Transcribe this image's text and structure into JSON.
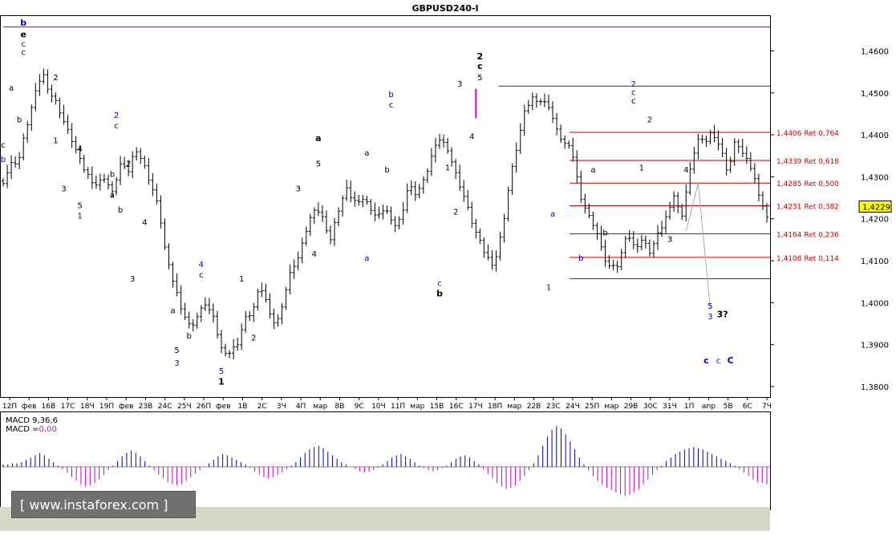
{
  "chart_data": {
    "type": "candlestick",
    "title": "GBPUSD240-I",
    "current_price_label": "1,4229",
    "colors": {
      "bars": "#000000",
      "levels": "#cc0000",
      "macd_pos": "#0000cc",
      "macd_neg": "#cc00cc",
      "projection": "#aaaaaa",
      "wave_blue": "#0000cc"
    },
    "price_axis": {
      "min": 1.3775,
      "max": 1.4685,
      "ticks": [
        "1,4600",
        "1,4500",
        "1,4400",
        "1,4300",
        "1,4200",
        "1,4100",
        "1,4000",
        "1,3900",
        "1,3800"
      ]
    },
    "x_labels": [
      "12П",
      "фев",
      "16В",
      "17С",
      "18Ч",
      "19П",
      "фев",
      "23В",
      "24С",
      "25Ч",
      "26П",
      "фев",
      "1В",
      "2С",
      "3Ч",
      "4П",
      "мар",
      "8В",
      "9С",
      "10Ч",
      "11П",
      "мар",
      "15В",
      "16С",
      "17Ч",
      "18П",
      "мар",
      "22В",
      "23С",
      "24Ч",
      "25П",
      "мар",
      "29В",
      "30С",
      "31Ч",
      "1П",
      "апр",
      "5В",
      "6С",
      "7Ч"
    ],
    "close_series": [
      1.429,
      1.433,
      1.434,
      1.442,
      1.449,
      1.455,
      1.45,
      1.447,
      1.442,
      1.438,
      1.433,
      1.43,
      1.428,
      1.43,
      1.426,
      1.433,
      1.431,
      1.437,
      1.433,
      1.428,
      1.422,
      1.41,
      1.404,
      1.398,
      1.394,
      1.397,
      1.4,
      1.396,
      1.389,
      1.388,
      1.39,
      1.396,
      1.398,
      1.404,
      1.399,
      1.394,
      1.401,
      1.408,
      1.411,
      1.418,
      1.423,
      1.42,
      1.415,
      1.422,
      1.427,
      1.424,
      1.425,
      1.423,
      1.42,
      1.423,
      1.418,
      1.42,
      1.428,
      1.426,
      1.429,
      1.435,
      1.439,
      1.437,
      1.431,
      1.426,
      1.42,
      1.415,
      1.411,
      1.409,
      1.417,
      1.429,
      1.438,
      1.446,
      1.449,
      1.448,
      1.447,
      1.441,
      1.438,
      1.436,
      1.426,
      1.421,
      1.418,
      1.411,
      1.408,
      1.409,
      1.417,
      1.413,
      1.415,
      1.412,
      1.416,
      1.42,
      1.426,
      1.42,
      1.43,
      1.439,
      1.438,
      1.441,
      1.437,
      1.431,
      1.439,
      1.435,
      1.432,
      1.426,
      1.42
    ],
    "levels": [
      {
        "price": 1.4657,
        "label": ""
      },
      {
        "price": 1.4516,
        "label": ""
      },
      {
        "price": 1.4406,
        "label": "1,4406 Ret 0,764"
      },
      {
        "price": 1.4339,
        "label": "1,4339 Ret 0,618"
      },
      {
        "price": 1.4285,
        "label": "1,4285 Ret 0,500"
      },
      {
        "price": 1.4231,
        "label": "1,4231 Ret 0,382"
      },
      {
        "price": 1.4164,
        "label": "1,4164 Ret 0,236"
      },
      {
        "price": 1.4108,
        "label": "1,4108 Ret 0,114"
      },
      {
        "price": 1.4057,
        "label": ""
      }
    ],
    "wave_labels": [
      {
        "t": "b",
        "i": 5,
        "p": 1.466,
        "c": "#0000cc",
        "bold": true
      },
      {
        "t": "e",
        "i": 5,
        "p": 1.4632,
        "c": "#000000",
        "bold": true
      },
      {
        "t": "c",
        "i": 5,
        "p": 1.461,
        "c": "#0000cc"
      },
      {
        "t": "c",
        "i": 5,
        "p": 1.459,
        "c": "#000000"
      },
      {
        "t": "a",
        "i": 2,
        "p": 1.4505,
        "c": "#000000"
      },
      {
        "t": "b",
        "i": 4,
        "p": 1.443,
        "c": "#000000"
      },
      {
        "t": "2",
        "i": 13,
        "p": 1.453,
        "c": "#000000"
      },
      {
        "t": "1",
        "i": 13,
        "p": 1.438,
        "c": "#000000"
      },
      {
        "t": "c",
        "i": 0,
        "p": 1.437,
        "c": "#000000"
      },
      {
        "t": "b",
        "i": 0,
        "p": 1.4335,
        "c": "#0000cc"
      },
      {
        "t": "3",
        "i": 15,
        "p": 1.4265,
        "c": "#000000"
      },
      {
        "t": "4",
        "i": 19,
        "p": 1.436,
        "c": "#000000"
      },
      {
        "t": "5",
        "i": 19,
        "p": 1.4225,
        "c": "#000000"
      },
      {
        "t": "1",
        "i": 19,
        "p": 1.42,
        "c": "#0000cc"
      },
      {
        "t": "2",
        "i": 28,
        "p": 1.444,
        "c": "#0000cc"
      },
      {
        "t": "c",
        "i": 28,
        "p": 1.4415,
        "c": "#000000"
      },
      {
        "t": "a",
        "i": 27,
        "p": 1.425,
        "c": "#000000"
      },
      {
        "t": "b",
        "i": 27,
        "p": 1.43,
        "c": "#000000"
      },
      {
        "t": "2",
        "i": 31,
        "p": 1.4325,
        "c": "#000000"
      },
      {
        "t": "b",
        "i": 29,
        "p": 1.4215,
        "c": "#000000"
      },
      {
        "t": "4",
        "i": 35,
        "p": 1.4185,
        "c": "#000000"
      },
      {
        "t": "3",
        "i": 32,
        "p": 1.405,
        "c": "#000000"
      },
      {
        "t": "a",
        "i": 42,
        "p": 1.3975,
        "c": "#000000"
      },
      {
        "t": "b",
        "i": 46,
        "p": 1.3915,
        "c": "#000000"
      },
      {
        "t": "5",
        "i": 43,
        "p": 1.388,
        "c": "#000000"
      },
      {
        "t": "3",
        "i": 43,
        "p": 1.385,
        "c": "#0000cc"
      },
      {
        "t": "4",
        "i": 49,
        "p": 1.4085,
        "c": "#0000cc"
      },
      {
        "t": "c",
        "i": 49,
        "p": 1.406,
        "c": "#000000"
      },
      {
        "t": "1",
        "i": 59,
        "p": 1.405,
        "c": "#000000"
      },
      {
        "t": "2",
        "i": 62,
        "p": 1.391,
        "c": "#000000"
      },
      {
        "t": "5",
        "i": 54,
        "p": 1.383,
        "c": "#0000cc"
      },
      {
        "t": "1",
        "i": 54,
        "p": 1.3805,
        "c": "#000000",
        "bold": true
      },
      {
        "t": "3",
        "i": 73,
        "p": 1.4265,
        "c": "#000000"
      },
      {
        "t": "4",
        "i": 77,
        "p": 1.411,
        "c": "#000000"
      },
      {
        "t": "a",
        "i": 78,
        "p": 1.4385,
        "c": "#000000",
        "bold": true
      },
      {
        "t": "5",
        "i": 78,
        "p": 1.4325,
        "c": "#000000"
      },
      {
        "t": "a",
        "i": 90,
        "p": 1.435,
        "c": "#000000"
      },
      {
        "t": "a",
        "i": 90,
        "p": 1.41,
        "c": "#0000cc"
      },
      {
        "t": "b",
        "i": 96,
        "p": 1.449,
        "c": "#0000cc"
      },
      {
        "t": "c",
        "i": 96,
        "p": 1.4465,
        "c": "#000000"
      },
      {
        "t": "b",
        "i": 95,
        "p": 1.431,
        "c": "#000000"
      },
      {
        "t": "c",
        "i": 108,
        "p": 1.404,
        "c": "#0000cc"
      },
      {
        "t": "b",
        "i": 108,
        "p": 1.4015,
        "c": "#000000",
        "bold": true
      },
      {
        "t": "1",
        "i": 110,
        "p": 1.4315,
        "c": "#000000"
      },
      {
        "t": "2",
        "i": 112,
        "p": 1.421,
        "c": "#000000"
      },
      {
        "t": "3",
        "i": 113,
        "p": 1.4515,
        "c": "#000000"
      },
      {
        "t": "4",
        "i": 116,
        "p": 1.439,
        "c": "#000000"
      },
      {
        "t": "2",
        "i": 118,
        "p": 1.458,
        "c": "#000000",
        "bold": true
      },
      {
        "t": "c",
        "i": 118,
        "p": 1.4557,
        "c": "#000000",
        "bold": true
      },
      {
        "t": "5",
        "i": 118,
        "p": 1.453,
        "c": "#000000"
      },
      {
        "t": "1",
        "i": 135,
        "p": 1.403,
        "c": "#0000cc"
      },
      {
        "t": "a",
        "i": 136,
        "p": 1.4205,
        "c": "#0000cc"
      },
      {
        "t": "b",
        "i": 143,
        "p": 1.41,
        "c": "#0000cc"
      },
      {
        "t": "a",
        "i": 146,
        "p": 1.431,
        "c": "#000000"
      },
      {
        "t": "b",
        "i": 149,
        "p": 1.416,
        "c": "#000000"
      },
      {
        "t": "2",
        "i": 156,
        "p": 1.4515,
        "c": "#0000cc"
      },
      {
        "t": "c",
        "i": 156,
        "p": 1.4495,
        "c": "#0000cc"
      },
      {
        "t": "c",
        "i": 156,
        "p": 1.4475,
        "c": "#000000"
      },
      {
        "t": "2",
        "i": 160,
        "p": 1.443,
        "c": "#000000"
      },
      {
        "t": "1",
        "i": 158,
        "p": 1.4315,
        "c": "#000000"
      },
      {
        "t": "3",
        "i": 165,
        "p": 1.4145,
        "c": "#000000"
      },
      {
        "t": "4",
        "i": 169,
        "p": 1.431,
        "c": "#000000"
      },
      {
        "t": "5",
        "i": 175,
        "p": 1.3985,
        "c": "#0000cc"
      },
      {
        "t": "3",
        "i": 175,
        "p": 1.396,
        "c": "#0000cc"
      },
      {
        "t": "3?",
        "i": 178,
        "p": 1.3965,
        "c": "#000000",
        "bold": true
      },
      {
        "t": "c",
        "i": 174,
        "p": 1.3855,
        "c": "#0000cc",
        "bold": true
      },
      {
        "t": "c",
        "i": 177,
        "p": 1.3855,
        "c": "#0000cc"
      },
      {
        "t": "C",
        "i": 180,
        "p": 1.3855,
        "c": "#0000cc",
        "bold": true
      }
    ],
    "macd_label": "MACD 9,36,6",
    "macd_value_label": "MACD =",
    "macd_value": "0,00",
    "macd_series": [
      2,
      2,
      3,
      3,
      4,
      6,
      8,
      10,
      12,
      10,
      7,
      4,
      1,
      -2,
      -5,
      -9,
      -12,
      -15,
      -17,
      -16,
      -14,
      -11,
      -7,
      -3,
      1,
      5,
      9,
      12,
      14,
      12,
      9,
      5,
      1,
      -3,
      -7,
      -10,
      -13,
      -15,
      -16,
      -15,
      -12,
      -9,
      -6,
      -3,
      0,
      3,
      6,
      9,
      11,
      10,
      8,
      6,
      4,
      2,
      -1,
      -4,
      -7,
      -9,
      -10,
      -9,
      -7,
      -5,
      -2,
      1,
      4,
      8,
      12,
      15,
      17,
      18,
      16,
      13,
      10,
      7,
      4,
      2,
      0,
      -2,
      -4,
      -5,
      -4,
      -3,
      -1,
      2,
      5,
      8,
      10,
      11,
      9,
      7,
      4,
      1,
      -1,
      -3,
      -4,
      -3,
      -1,
      1,
      4,
      7,
      9,
      10,
      8,
      5,
      2,
      -2,
      -6,
      -10,
      -14,
      -17,
      -19,
      -18,
      -16,
      -12,
      -8,
      -3,
      3,
      10,
      18,
      26,
      32,
      35,
      33,
      28,
      22,
      15,
      8,
      2,
      -3,
      -8,
      -12,
      -15,
      -18,
      -20,
      -22,
      -24,
      -25,
      -24,
      -22,
      -19,
      -15,
      -11,
      -7,
      -3,
      1,
      5,
      8,
      11,
      13,
      15,
      16,
      17,
      16,
      15,
      13,
      11,
      9,
      7,
      5,
      3,
      1,
      -2,
      -5,
      -8,
      -11,
      -13,
      -14,
      -15
    ]
  }
}
